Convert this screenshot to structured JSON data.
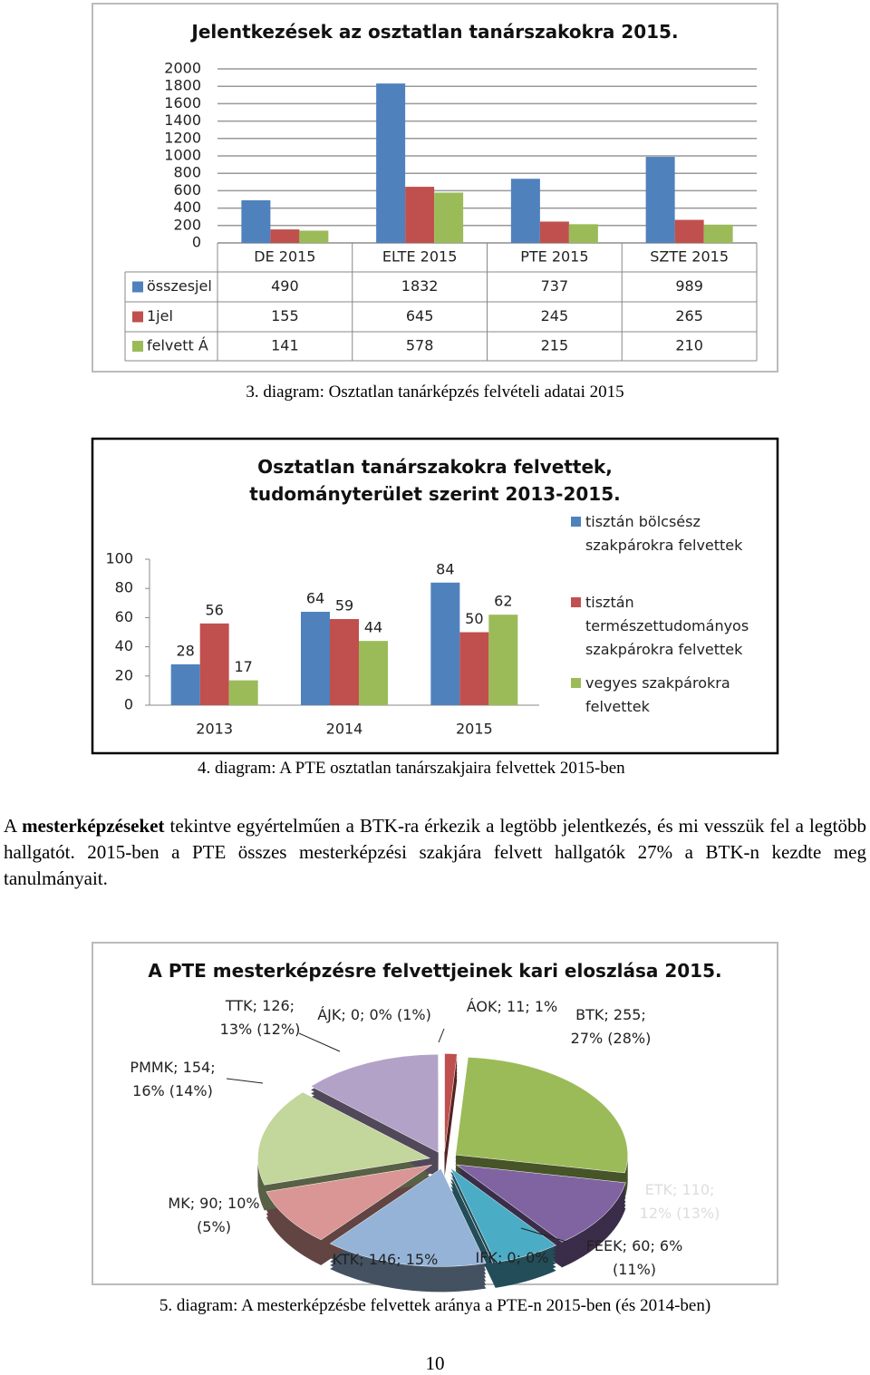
{
  "chart_data": [
    {
      "type": "bar",
      "title": "Jelentkezések az osztatlan tanárszakokra 2015.",
      "categories": [
        "DE 2015",
        "ELTE 2015",
        "PTE 2015",
        "SZTE 2015"
      ],
      "series": [
        {
          "name": "összesjel",
          "color": "#4f81bd",
          "values": [
            490,
            1832,
            737,
            989
          ]
        },
        {
          "name": "1jel",
          "color": "#c0504d",
          "values": [
            155,
            645,
            245,
            265
          ]
        },
        {
          "name": "felvett Á",
          "color": "#9bbb59",
          "values": [
            141,
            578,
            215,
            210
          ]
        }
      ],
      "ylim": [
        0,
        2000
      ],
      "yticks": [
        0,
        200,
        400,
        600,
        800,
        1000,
        1200,
        1400,
        1600,
        1800,
        2000
      ],
      "grid": true,
      "data_table": true
    },
    {
      "type": "bar",
      "title": "Osztatlan tanárszakokra felvettek, tudományterület szerint 2013-2015.",
      "categories": [
        "2013",
        "2014",
        "2015"
      ],
      "series": [
        {
          "name": "tisztán bölcsész szakpárokra felvettek",
          "color": "#4f81bd",
          "values": [
            28,
            64,
            84
          ]
        },
        {
          "name": "tisztán természettudományos szakpárokra felvettek",
          "color": "#c0504d",
          "values": [
            56,
            59,
            50
          ]
        },
        {
          "name": "vegyes szakpárokra felvettek",
          "color": "#9bbb59",
          "values": [
            17,
            44,
            62
          ]
        }
      ],
      "ylim": [
        0,
        100
      ],
      "yticks": [
        0,
        20,
        40,
        60,
        80,
        100
      ],
      "grid": false,
      "legend": "right",
      "data_labels": true
    },
    {
      "type": "pie",
      "title": "A PTE mesterképzésre felvettjeinek kari eloszlása 2015.",
      "values": [
        11,
        255,
        110,
        60,
        0,
        146,
        90,
        154,
        126,
        0
      ],
      "value_labels": [
        "ÁOK; 11; 1%",
        "BTK; 255; 27% (28%)",
        "ETK; 110; 12% (13%)",
        "FEEK; 60; 6% (11%)",
        "IFK; 0; 0%",
        "KTK; 146; 15%",
        "MK; 90; 10% (5%)",
        "PMMK; 154; 16% (14%)",
        "TTK; 126; 13% (12%)",
        "ÁJK; 0; 0% (1%)"
      ],
      "colors": [
        "#c0504d",
        "#9bbb59",
        "#8064a2",
        "#4bacc6",
        "#f79646",
        "#95b3d7",
        "#d99694",
        "#c3d69b",
        "#b3a2c7",
        "#8eb4e3"
      ]
    }
  ],
  "captions": [
    "3. diagram: Osztatlan tanárképzés felvételi adatai 2015",
    "4. diagram: A PTE osztatlan tanárszakjaira felvettek 2015-ben",
    "5. diagram: A mesterképzésbe felvettek aránya a PTE-n 2015-ben (és 2014-ben)"
  ],
  "paragraph": [
    "A ",
    "mesterképzéseket",
    " tekintve egyértelműen a BTK-ra érkezik a legtöbb jelentkezés, és mi vesszük fel a legtöbb hallgatót. 2015-ben a PTE összes mesterképzési szakjára felvett hallgatók 27% a BTK-n kezdte meg tanulmányait."
  ],
  "page_number": "10"
}
